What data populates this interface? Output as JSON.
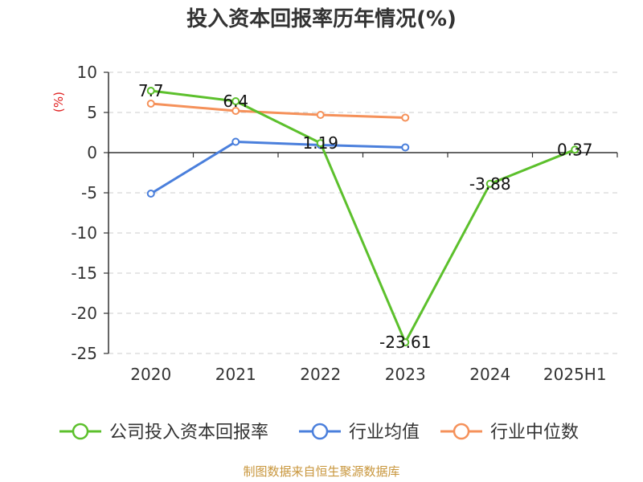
{
  "chart_data": {
    "type": "line",
    "title": "投入资本回报率历年情况(%)",
    "ylabel": "(%)",
    "categories": [
      "2020",
      "2021",
      "2022",
      "2023",
      "2024",
      "2025H1"
    ],
    "ylim": [
      -25,
      10
    ],
    "yticks": [
      10,
      5,
      0,
      -5,
      -10,
      -15,
      -20,
      -25
    ],
    "grid": true,
    "legend_position": "bottom",
    "series": [
      {
        "name": "公司投入资本回报率",
        "color": "#5cc02c",
        "values": [
          7.7,
          6.4,
          1.19,
          -23.61,
          -3.88,
          0.37
        ],
        "labels": [
          "7.7",
          "6.4",
          "1.19",
          "-23.61",
          "-3.88",
          "0.37"
        ]
      },
      {
        "name": "行业均值",
        "color": "#4a7fdc",
        "values": [
          -5.1,
          1.35,
          0.95,
          0.65,
          null,
          null
        ],
        "labels": null
      },
      {
        "name": "行业中位数",
        "color": "#f5915a",
        "values": [
          6.1,
          5.2,
          4.7,
          4.35,
          null,
          null
        ],
        "labels": null
      }
    ]
  },
  "source": "制图数据来自恒生聚源数据库"
}
